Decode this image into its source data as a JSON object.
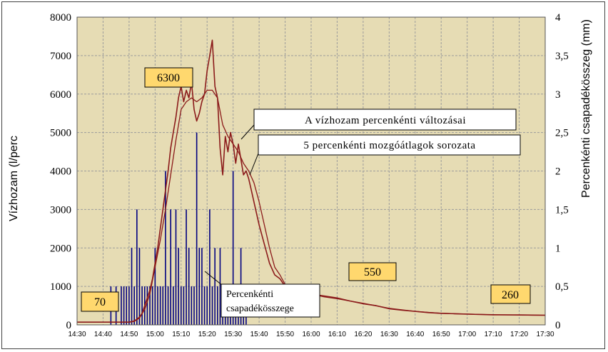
{
  "chart_data": {
    "type": "line",
    "xlabel": "",
    "ylabel": "Vízhozam (l/perc",
    "y2label": "Percenkénti csapadékösszeg (mm)",
    "x_ticks": [
      "14:30",
      "14:40",
      "14:50",
      "15:00",
      "15:10",
      "15:20",
      "15:30",
      "15:40",
      "15:50",
      "16:00",
      "16:10",
      "16:20",
      "16:30",
      "16:40",
      "16:50",
      "17:00",
      "17:10",
      "17:20",
      "17:30"
    ],
    "ylim": [
      0,
      8000
    ],
    "y_ticks": [
      "0",
      "1000",
      "2000",
      "3000",
      "4000",
      "5000",
      "6000",
      "7000",
      "8000"
    ],
    "y2lim": [
      0,
      4
    ],
    "y2_ticks": [
      "0",
      "0,5",
      "1",
      "1,5",
      "2",
      "2,5",
      "3",
      "3,5",
      "4"
    ],
    "grid": true,
    "background_color": "#e6dcb4",
    "line_color": "#8b1a1a",
    "bar_color": "#000080",
    "series": [
      {
        "name": "A vízhozam percenkénti változásai",
        "type": "line",
        "x": [
          0,
          10,
          20,
          22,
          24,
          25,
          26,
          27,
          28,
          29,
          30,
          31,
          32,
          33,
          34,
          35,
          36,
          37,
          38,
          39,
          40,
          41,
          42,
          43,
          44,
          45,
          46,
          47,
          48,
          49,
          50,
          51,
          52,
          53,
          54,
          55,
          56,
          57,
          58,
          59,
          60,
          61,
          62,
          63,
          64,
          65,
          66,
          67,
          68,
          70,
          72,
          74,
          76,
          78,
          80,
          85,
          90,
          95,
          100,
          105,
          110,
          115,
          120,
          125,
          130,
          135,
          140,
          145,
          150,
          155,
          160,
          165,
          170,
          175,
          180
        ],
        "values": [
          70,
          70,
          70,
          100,
          200,
          300,
          500,
          700,
          900,
          1200,
          1600,
          2000,
          2500,
          3000,
          3500,
          4000,
          4600,
          5000,
          5400,
          5900,
          6200,
          5800,
          6100,
          5900,
          6300,
          5600,
          5300,
          5500,
          5800,
          6000,
          6600,
          7000,
          7400,
          6200,
          5900,
          4600,
          3900,
          4900,
          4500,
          5000,
          4700,
          4200,
          4700,
          4300,
          3900,
          4000,
          3800,
          3500,
          3200,
          2600,
          2100,
          1600,
          1300,
          1200,
          1000,
          900,
          800,
          750,
          700,
          620,
          550,
          500,
          420,
          380,
          350,
          320,
          300,
          290,
          280,
          270,
          260,
          260,
          260,
          255,
          250
        ]
      },
      {
        "name": "5 percenkénti mozgóátlagok sorozata",
        "type": "line",
        "x": [
          0,
          10,
          20,
          22,
          24,
          26,
          28,
          30,
          32,
          34,
          36,
          38,
          40,
          42,
          44,
          46,
          48,
          50,
          52,
          54,
          56,
          58,
          60,
          62,
          64,
          66,
          68,
          70,
          72,
          74,
          76,
          78,
          80,
          85,
          90,
          95,
          100,
          110,
          120,
          130,
          140,
          150,
          160,
          170,
          180
        ],
        "values": [
          70,
          70,
          70,
          90,
          180,
          400,
          800,
          1500,
          2200,
          3000,
          3900,
          4800,
          5600,
          5800,
          5900,
          5800,
          5900,
          6100,
          6100,
          5900,
          5200,
          4900,
          4700,
          4500,
          4200,
          4000,
          3700,
          3200,
          2600,
          2000,
          1500,
          1300,
          1050,
          900,
          800,
          730,
          680,
          560,
          430,
          350,
          300,
          280,
          265,
          255,
          250
        ]
      },
      {
        "name": "Percenkénti csapadékösszeg",
        "type": "bar",
        "axis": "y2",
        "x": [
          13,
          15,
          17,
          18,
          19,
          20,
          21,
          22,
          23,
          24,
          25,
          26,
          27,
          28,
          29,
          30,
          31,
          32,
          33,
          34,
          35,
          36,
          37,
          38,
          39,
          40,
          41,
          42,
          43,
          44,
          45,
          46,
          47,
          48,
          49,
          50,
          51,
          52,
          53,
          54,
          55,
          56,
          57,
          58,
          59,
          60,
          61,
          62,
          63,
          64,
          65
        ],
        "values": [
          0.5,
          0.5,
          0.5,
          0.5,
          0.5,
          0.5,
          1,
          0.5,
          1.5,
          1,
          0.5,
          0.5,
          0.5,
          0.5,
          0.5,
          1,
          0.5,
          0.5,
          0.5,
          2,
          0.5,
          1.5,
          0.5,
          1.5,
          1,
          0.5,
          0.5,
          1.5,
          1,
          0.5,
          0.5,
          2.5,
          1,
          1,
          0.5,
          0.5,
          1.5,
          0.5,
          1,
          0.5,
          1,
          0.5,
          0.5,
          0.5,
          0.5,
          2,
          0.5,
          0.5,
          1,
          0.5,
          0.5
        ]
      }
    ]
  },
  "annotations": {
    "line_callout": "A vízhozam percenkénti változásai",
    "avg_callout": "5 percenkénti mozgóátlagok sorozata",
    "bar_callout_line1": "Percenkénti",
    "bar_callout_line2": "csapadékösszege",
    "val_70": "70",
    "val_6300": "6300",
    "val_550": "550",
    "val_260": "260"
  }
}
